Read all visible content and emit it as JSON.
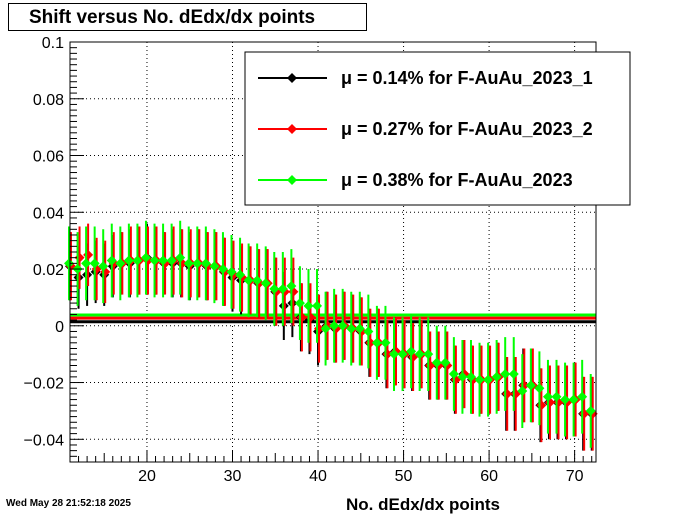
{
  "chart_data": {
    "type": "scatter",
    "title": "Shift versus No. dEdx/dx points",
    "xlabel": "No. dEdx/dx points",
    "ylabel": "",
    "xlim": [
      11,
      72.5
    ],
    "ylim": [
      -0.048,
      0.1
    ],
    "xticks": [
      "20",
      "30",
      "40",
      "50",
      "60",
      "70"
    ],
    "yticks": [
      "0.1",
      "0.08",
      "0.06",
      "0.04",
      "0.02",
      "0",
      "−0.02",
      "−0.04"
    ],
    "grid": true,
    "legend_position": "top-right",
    "series": [
      {
        "name": "μ =  0.14% for F-AuAu_2023_1",
        "color": "#000000",
        "fit_level": 0.0014,
        "x": [
          11,
          12,
          13,
          14,
          15,
          16,
          17,
          18,
          19,
          20,
          21,
          22,
          23,
          24,
          25,
          26,
          27,
          28,
          29,
          30,
          31,
          32,
          33,
          34,
          35,
          36,
          37,
          38,
          39,
          40,
          41,
          42,
          43,
          44,
          45,
          46,
          47,
          48,
          49,
          50,
          51,
          52,
          53,
          54,
          55,
          56,
          57,
          58,
          59,
          60,
          61,
          62,
          63,
          64,
          65,
          66,
          67,
          68,
          69,
          70,
          71,
          72
        ],
        "y": [
          0.021,
          0.017,
          0.018,
          0.019,
          0.018,
          0.021,
          0.022,
          0.022,
          0.023,
          0.024,
          0.023,
          0.022,
          0.022,
          0.022,
          0.021,
          0.022,
          0.021,
          0.021,
          0.019,
          0.017,
          0.016,
          0.016,
          0.015,
          0.015,
          0.012,
          0.007,
          0.008,
          0.003,
          0.002,
          -0.002,
          0.0,
          -0.001,
          0.0,
          -0.001,
          -0.002,
          -0.006,
          -0.006,
          -0.01,
          -0.009,
          -0.01,
          -0.011,
          -0.01,
          -0.014,
          -0.014,
          -0.014,
          -0.019,
          -0.017,
          -0.019,
          -0.019,
          -0.019,
          -0.018,
          -0.024,
          -0.024,
          -0.021,
          -0.021,
          -0.028,
          -0.027,
          -0.027,
          -0.027,
          -0.026,
          -0.031,
          -0.031
        ],
        "err": [
          0.012,
          0.011,
          0.011,
          0.011,
          0.011,
          0.011,
          0.011,
          0.012,
          0.012,
          0.012,
          0.012,
          0.011,
          0.012,
          0.012,
          0.012,
          0.012,
          0.012,
          0.012,
          0.012,
          0.012,
          0.012,
          0.012,
          0.012,
          0.012,
          0.012,
          0.012,
          0.012,
          0.012,
          0.012,
          0.012,
          0.012,
          0.012,
          0.012,
          0.012,
          0.012,
          0.012,
          0.012,
          0.012,
          0.012,
          0.012,
          0.012,
          0.012,
          0.012,
          0.012,
          0.012,
          0.012,
          0.012,
          0.012,
          0.012,
          0.012,
          0.012,
          0.013,
          0.013,
          0.013,
          0.013,
          0.013,
          0.013,
          0.013,
          0.013,
          0.013,
          0.013,
          0.013
        ]
      },
      {
        "name": "μ =  0.27% for F-AuAu_2023_2",
        "color": "#ff0000",
        "fit_level": 0.0027,
        "x": [
          11,
          12,
          13,
          14,
          15,
          16,
          17,
          18,
          19,
          20,
          21,
          22,
          23,
          24,
          25,
          26,
          27,
          28,
          29,
          30,
          31,
          32,
          33,
          34,
          35,
          36,
          37,
          38,
          39,
          40,
          41,
          42,
          43,
          44,
          45,
          46,
          47,
          48,
          49,
          50,
          51,
          52,
          53,
          54,
          55,
          56,
          57,
          58,
          59,
          60,
          61,
          62,
          63,
          64,
          65,
          66,
          67,
          68,
          69,
          70,
          71,
          72
        ],
        "y": [
          0.021,
          0.024,
          0.025,
          0.02,
          0.019,
          0.022,
          0.022,
          0.023,
          0.023,
          0.023,
          0.023,
          0.022,
          0.023,
          0.022,
          0.022,
          0.022,
          0.021,
          0.021,
          0.019,
          0.018,
          0.017,
          0.016,
          0.015,
          0.015,
          0.012,
          0.012,
          0.012,
          0.003,
          0.003,
          -0.001,
          0.0,
          -0.001,
          0.0,
          -0.001,
          -0.002,
          -0.006,
          -0.006,
          -0.01,
          -0.009,
          -0.01,
          -0.011,
          -0.01,
          -0.014,
          -0.014,
          -0.014,
          -0.019,
          -0.017,
          -0.019,
          -0.019,
          -0.019,
          -0.018,
          -0.024,
          -0.024,
          -0.021,
          -0.021,
          -0.028,
          -0.027,
          -0.027,
          -0.027,
          -0.026,
          -0.031,
          -0.031
        ],
        "err": [
          0.012,
          0.011,
          0.011,
          0.011,
          0.011,
          0.011,
          0.011,
          0.012,
          0.012,
          0.012,
          0.012,
          0.011,
          0.012,
          0.012,
          0.012,
          0.012,
          0.012,
          0.012,
          0.012,
          0.012,
          0.012,
          0.012,
          0.012,
          0.012,
          0.012,
          0.012,
          0.012,
          0.012,
          0.012,
          0.012,
          0.012,
          0.012,
          0.012,
          0.012,
          0.012,
          0.012,
          0.012,
          0.012,
          0.012,
          0.012,
          0.012,
          0.012,
          0.012,
          0.012,
          0.012,
          0.012,
          0.012,
          0.012,
          0.012,
          0.012,
          0.012,
          0.013,
          0.013,
          0.013,
          0.013,
          0.013,
          0.013,
          0.013,
          0.013,
          0.013,
          0.013,
          0.013
        ]
      },
      {
        "name": "μ =  0.38% for F-AuAu_2023",
        "color": "#00ff00",
        "fit_level": 0.0038,
        "x": [
          11,
          12,
          13,
          14,
          15,
          16,
          17,
          18,
          19,
          20,
          21,
          22,
          23,
          24,
          25,
          26,
          27,
          28,
          29,
          30,
          31,
          32,
          33,
          34,
          35,
          36,
          37,
          38,
          39,
          40,
          41,
          42,
          43,
          44,
          45,
          46,
          47,
          48,
          49,
          50,
          51,
          52,
          53,
          54,
          55,
          56,
          57,
          58,
          59,
          60,
          61,
          62,
          63,
          64,
          65,
          66,
          67,
          68,
          69,
          70,
          71,
          72
        ],
        "y": [
          0.022,
          0.02,
          0.022,
          0.022,
          0.021,
          0.023,
          0.022,
          0.023,
          0.023,
          0.024,
          0.023,
          0.023,
          0.023,
          0.024,
          0.022,
          0.022,
          0.022,
          0.021,
          0.02,
          0.019,
          0.018,
          0.016,
          0.016,
          0.015,
          0.013,
          0.013,
          0.014,
          0.008,
          0.007,
          0.007,
          -0.001,
          0.0,
          0.0,
          -0.001,
          -0.001,
          -0.002,
          -0.006,
          -0.006,
          -0.01,
          -0.01,
          -0.009,
          -0.01,
          -0.01,
          -0.013,
          -0.013,
          -0.017,
          -0.018,
          -0.018,
          -0.019,
          -0.019,
          -0.018,
          -0.017,
          -0.017,
          -0.023,
          -0.021,
          -0.022,
          -0.025,
          -0.025,
          -0.026,
          -0.026,
          -0.025,
          -0.03
        ],
        "err": [
          0.013,
          0.013,
          0.013,
          0.013,
          0.013,
          0.013,
          0.013,
          0.013,
          0.013,
          0.013,
          0.013,
          0.013,
          0.013,
          0.013,
          0.013,
          0.013,
          0.013,
          0.013,
          0.013,
          0.013,
          0.013,
          0.013,
          0.013,
          0.013,
          0.013,
          0.013,
          0.013,
          0.013,
          0.013,
          0.013,
          0.013,
          0.013,
          0.013,
          0.013,
          0.013,
          0.013,
          0.013,
          0.013,
          0.013,
          0.013,
          0.013,
          0.013,
          0.013,
          0.013,
          0.013,
          0.013,
          0.013,
          0.013,
          0.013,
          0.013,
          0.013,
          0.013,
          0.013,
          0.013,
          0.013,
          0.013,
          0.013,
          0.013,
          0.013,
          0.013,
          0.013,
          0.013
        ]
      }
    ]
  },
  "footer": {
    "timestamp": "Wed May 28 21:52:18 2025"
  }
}
